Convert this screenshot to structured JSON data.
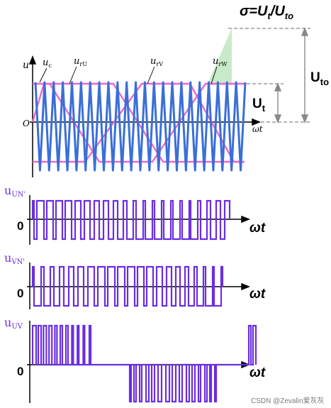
{
  "colors": {
    "carrier": "#3a6fd8",
    "modulating": "#ee66cc",
    "pulse": "#6a2ee0",
    "axis": "#000000",
    "guide": "#888888",
    "highlight": "#bfe6bf"
  },
  "top_panel": {
    "y_axis_label": "u",
    "origin_label": "O",
    "x_axis_label": "ωt",
    "legend": {
      "uc": "u",
      "uc_sub": "c",
      "urU": "u",
      "urU_sub": "rU",
      "urV": "u",
      "urV_sub": "rV",
      "urW": "u",
      "urW_sub": "rW"
    },
    "formula": {
      "sigma": "σ",
      "eq": "=",
      "Ut": "U",
      "Ut_sub": "t",
      "slash": "/",
      "Uto": "U",
      "Uto_sub": "to"
    },
    "dim_Uto": "U",
    "dim_Uto_sub": "to",
    "dim_Ut": "U",
    "dim_Ut_sub": "t"
  },
  "panels": [
    {
      "label": "u",
      "label_sub": "UN'",
      "zero": "0",
      "xlabel": "ωt"
    },
    {
      "label": "u",
      "label_sub": "VN'",
      "zero": "0",
      "xlabel": "ωt"
    },
    {
      "label": "u",
      "label_sub": "UV",
      "zero": "0",
      "xlabel": "ωt"
    }
  ],
  "watermark": "CSDN @Zevalin爱灰灰"
}
